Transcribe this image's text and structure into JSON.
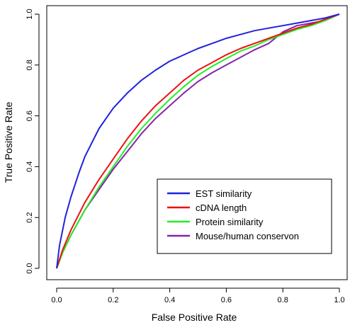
{
  "chart_data": {
    "type": "line",
    "title": "",
    "xlabel": "False Positive Rate",
    "ylabel": "True Positive Rate",
    "xlim": [
      0,
      1
    ],
    "ylim": [
      0,
      1
    ],
    "xticks": [
      "0.0",
      "0.2",
      "0.4",
      "0.6",
      "0.8",
      "1.0"
    ],
    "yticks": [
      "0.0",
      "0.2",
      "0.4",
      "0.6",
      "0.8",
      "1.0"
    ],
    "grid": false,
    "legend_position": "bottom-right",
    "series": [
      {
        "name": "EST similarity",
        "color": "#2222dd",
        "x": [
          0,
          0.01,
          0.03,
          0.05,
          0.08,
          0.1,
          0.15,
          0.2,
          0.25,
          0.3,
          0.35,
          0.4,
          0.45,
          0.5,
          0.55,
          0.6,
          0.65,
          0.7,
          0.75,
          0.8,
          0.85,
          0.9,
          0.95,
          1.0
        ],
        "y": [
          0,
          0.09,
          0.2,
          0.28,
          0.38,
          0.44,
          0.55,
          0.63,
          0.69,
          0.74,
          0.78,
          0.815,
          0.84,
          0.865,
          0.885,
          0.905,
          0.92,
          0.935,
          0.945,
          0.955,
          0.965,
          0.975,
          0.985,
          1.0
        ]
      },
      {
        "name": "cDNA length",
        "color": "#ee1111",
        "x": [
          0,
          0.02,
          0.05,
          0.1,
          0.15,
          0.2,
          0.25,
          0.3,
          0.35,
          0.4,
          0.45,
          0.5,
          0.55,
          0.6,
          0.65,
          0.7,
          0.75,
          0.8,
          0.85,
          0.9,
          0.95,
          1.0
        ],
        "y": [
          0,
          0.07,
          0.15,
          0.26,
          0.35,
          0.43,
          0.51,
          0.58,
          0.64,
          0.69,
          0.74,
          0.78,
          0.81,
          0.84,
          0.865,
          0.885,
          0.905,
          0.925,
          0.945,
          0.96,
          0.98,
          1.0
        ]
      },
      {
        "name": "Protein similarity",
        "color": "#22ee22",
        "x": [
          0,
          0.02,
          0.05,
          0.1,
          0.15,
          0.2,
          0.25,
          0.3,
          0.35,
          0.4,
          0.45,
          0.5,
          0.55,
          0.6,
          0.65,
          0.7,
          0.75,
          0.8,
          0.85,
          0.9,
          0.95,
          1.0
        ],
        "y": [
          0,
          0.06,
          0.13,
          0.23,
          0.32,
          0.4,
          0.48,
          0.55,
          0.61,
          0.665,
          0.715,
          0.76,
          0.795,
          0.825,
          0.855,
          0.875,
          0.9,
          0.92,
          0.94,
          0.955,
          0.975,
          1.0
        ]
      },
      {
        "name": "Mouse/human conservon",
        "color": "#8822aa",
        "x": [
          0,
          0.02,
          0.05,
          0.1,
          0.15,
          0.2,
          0.25,
          0.3,
          0.35,
          0.4,
          0.45,
          0.5,
          0.55,
          0.6,
          0.65,
          0.7,
          0.75,
          0.8,
          0.85,
          0.9,
          0.95,
          1.0
        ],
        "y": [
          0,
          0.06,
          0.13,
          0.23,
          0.31,
          0.39,
          0.46,
          0.53,
          0.59,
          0.64,
          0.69,
          0.735,
          0.77,
          0.8,
          0.83,
          0.86,
          0.885,
          0.93,
          0.955,
          0.965,
          0.975,
          1.0
        ]
      }
    ]
  }
}
